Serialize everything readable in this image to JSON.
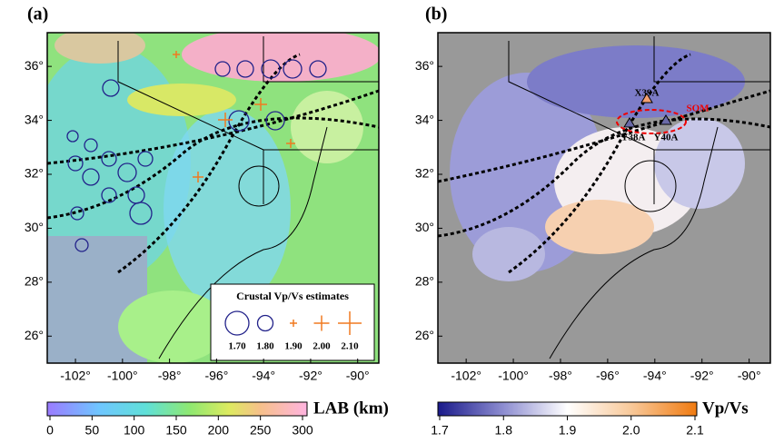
{
  "panels": [
    {
      "label": "(a)",
      "xlim": [
        -103.2,
        -89.1
      ],
      "ylim": [
        25,
        37.25
      ],
      "xticks": [
        {
          "value": -102,
          "label": "-102°"
        },
        {
          "value": -100,
          "label": "-100°"
        },
        {
          "value": -98,
          "label": "-98°"
        },
        {
          "value": -96,
          "label": "-96°"
        },
        {
          "value": -94,
          "label": "-94°"
        },
        {
          "value": -92,
          "label": "-92°"
        },
        {
          "value": -90,
          "label": "-90°"
        }
      ],
      "yticks": [
        {
          "value": 26,
          "label": "26°"
        },
        {
          "value": 28,
          "label": "28°"
        },
        {
          "value": 30,
          "label": "30°"
        },
        {
          "value": 32,
          "label": "32°"
        },
        {
          "value": 34,
          "label": "34°"
        },
        {
          "value": 36,
          "label": "36°"
        }
      ],
      "colorbar": {
        "label": "LAB (km)",
        "lim": [
          0,
          300
        ],
        "ticks": [
          0,
          50,
          100,
          150,
          200,
          250,
          300
        ]
      },
      "legend": {
        "title": "Crustal Vp/Vs estimates",
        "entries": [
          {
            "value": 1.7,
            "label": "1.70"
          },
          {
            "value": 1.8,
            "label": "1.80"
          },
          {
            "value": 1.9,
            "label": "1.90"
          },
          {
            "value": 2,
            "label": "2.00"
          },
          {
            "value": 2.1,
            "label": "2.10"
          }
        ]
      }
    },
    {
      "label": "(b)",
      "xlim": [
        -103.2,
        -89.1
      ],
      "ylim": [
        25,
        37.25
      ],
      "xticks": [
        {
          "value": -102,
          "label": "-102°"
        },
        {
          "value": -100,
          "label": "-100°"
        },
        {
          "value": -98,
          "label": "-98°"
        },
        {
          "value": -96,
          "label": "-96°"
        },
        {
          "value": -94,
          "label": "-94°"
        },
        {
          "value": -92,
          "label": "-92°"
        },
        {
          "value": -90,
          "label": "-90°"
        }
      ],
      "yticks": [
        {
          "value": 26,
          "label": "26°"
        },
        {
          "value": 28,
          "label": "28°"
        },
        {
          "value": 30,
          "label": "30°"
        },
        {
          "value": 32,
          "label": "32°"
        },
        {
          "value": 34,
          "label": "34°"
        },
        {
          "value": 36,
          "label": "36°"
        }
      ],
      "colorbar": {
        "label": "Vp/Vs",
        "lim": [
          1.7,
          2.1
        ],
        "ticks": [
          1.7,
          1.8,
          1.9,
          {
            "value": 2,
            "label": "2.0"
          },
          2.1
        ]
      },
      "annotations": [
        "X39A",
        "Y38A",
        "Y40A",
        "SOM"
      ]
    }
  ]
}
